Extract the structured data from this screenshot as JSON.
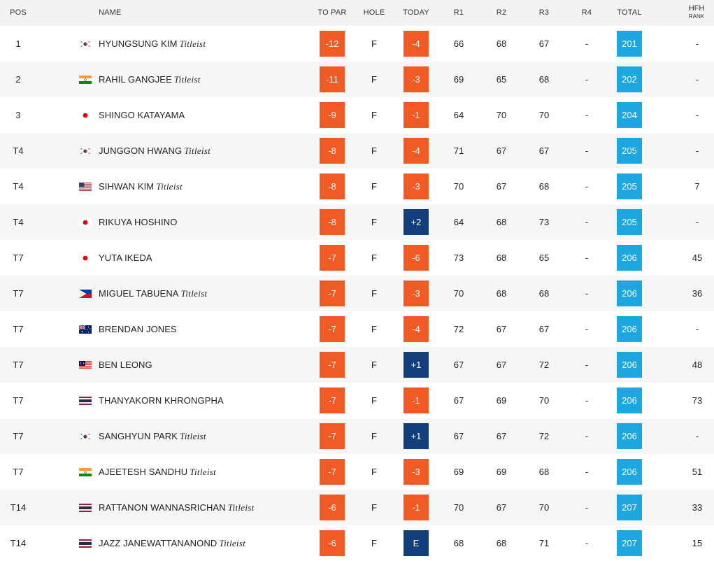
{
  "columns": {
    "pos": "POS",
    "name": "NAME",
    "to_par": "TO PAR",
    "hole": "HOLE",
    "today": "TODAY",
    "r1": "R1",
    "r2": "R2",
    "r3": "R3",
    "r4": "R4",
    "total": "TOTAL",
    "hfh": "HFH",
    "hfh_sub": "RANK"
  },
  "colors": {
    "to_par_box": "#f05a24",
    "today_over_box": "#123e7c",
    "total_box": "#1ca7e0"
  },
  "rows": [
    {
      "pos": "1",
      "flag": "korea-flag-icon",
      "name": "HYUNGSUNG KIM",
      "sponsor": "Titleist",
      "to_par": "-12",
      "hole": "F",
      "today": "-4",
      "r1": "66",
      "r2": "68",
      "r3": "67",
      "r4": "-",
      "total": "201",
      "hfh": "-"
    },
    {
      "pos": "2",
      "flag": "india-flag-icon",
      "name": "RAHIL GANGJEE",
      "sponsor": "Titleist",
      "to_par": "-11",
      "hole": "F",
      "today": "-3",
      "r1": "69",
      "r2": "65",
      "r3": "68",
      "r4": "-",
      "total": "202",
      "hfh": "-"
    },
    {
      "pos": "3",
      "flag": "japan-flag-icon",
      "name": "SHINGO KATAYAMA",
      "sponsor": "",
      "to_par": "-9",
      "hole": "F",
      "today": "-1",
      "r1": "64",
      "r2": "70",
      "r3": "70",
      "r4": "-",
      "total": "204",
      "hfh": "-"
    },
    {
      "pos": "T4",
      "flag": "korea-flag-icon",
      "name": "JUNGGON HWANG",
      "sponsor": "Titleist",
      "to_par": "-8",
      "hole": "F",
      "today": "-4",
      "r1": "71",
      "r2": "67",
      "r3": "67",
      "r4": "-",
      "total": "205",
      "hfh": "-"
    },
    {
      "pos": "T4",
      "flag": "usa-flag-icon",
      "name": "SIHWAN KIM",
      "sponsor": "Titleist",
      "to_par": "-8",
      "hole": "F",
      "today": "-3",
      "r1": "70",
      "r2": "67",
      "r3": "68",
      "r4": "-",
      "total": "205",
      "hfh": "7"
    },
    {
      "pos": "T4",
      "flag": "japan-flag-icon",
      "name": "RIKUYA HOSHINO",
      "sponsor": "",
      "to_par": "-8",
      "hole": "F",
      "today": "+2",
      "r1": "64",
      "r2": "68",
      "r3": "73",
      "r4": "-",
      "total": "205",
      "hfh": "-"
    },
    {
      "pos": "T7",
      "flag": "japan-flag-icon",
      "name": "YUTA IKEDA",
      "sponsor": "",
      "to_par": "-7",
      "hole": "F",
      "today": "-6",
      "r1": "73",
      "r2": "68",
      "r3": "65",
      "r4": "-",
      "total": "206",
      "hfh": "45"
    },
    {
      "pos": "T7",
      "flag": "philippines-flag-icon",
      "name": "MIGUEL TABUENA",
      "sponsor": "Titleist",
      "to_par": "-7",
      "hole": "F",
      "today": "-3",
      "r1": "70",
      "r2": "68",
      "r3": "68",
      "r4": "-",
      "total": "206",
      "hfh": "36"
    },
    {
      "pos": "T7",
      "flag": "australia-flag-icon",
      "name": "BRENDAN JONES",
      "sponsor": "",
      "to_par": "-7",
      "hole": "F",
      "today": "-4",
      "r1": "72",
      "r2": "67",
      "r3": "67",
      "r4": "-",
      "total": "206",
      "hfh": "-"
    },
    {
      "pos": "T7",
      "flag": "malaysia-flag-icon",
      "name": "BEN LEONG",
      "sponsor": "",
      "to_par": "-7",
      "hole": "F",
      "today": "+1",
      "r1": "67",
      "r2": "67",
      "r3": "72",
      "r4": "-",
      "total": "206",
      "hfh": "48"
    },
    {
      "pos": "T7",
      "flag": "thailand-flag-icon",
      "name": "THANYAKORN KHRONGPHA",
      "sponsor": "",
      "to_par": "-7",
      "hole": "F",
      "today": "-1",
      "r1": "67",
      "r2": "69",
      "r3": "70",
      "r4": "-",
      "total": "206",
      "hfh": "73"
    },
    {
      "pos": "T7",
      "flag": "korea-flag-icon",
      "name": "SANGHYUN PARK",
      "sponsor": "Titleist",
      "to_par": "-7",
      "hole": "F",
      "today": "+1",
      "r1": "67",
      "r2": "67",
      "r3": "72",
      "r4": "-",
      "total": "206",
      "hfh": "-"
    },
    {
      "pos": "T7",
      "flag": "india-flag-icon",
      "name": "AJEETESH SANDHU",
      "sponsor": "Titleist",
      "to_par": "-7",
      "hole": "F",
      "today": "-3",
      "r1": "69",
      "r2": "69",
      "r3": "68",
      "r4": "-",
      "total": "206",
      "hfh": "51"
    },
    {
      "pos": "T14",
      "flag": "thailand-flag-icon",
      "name": "RATTANON WANNASRICHAN",
      "sponsor": "Titleist",
      "to_par": "-6",
      "hole": "F",
      "today": "-1",
      "r1": "70",
      "r2": "67",
      "r3": "70",
      "r4": "-",
      "total": "207",
      "hfh": "33"
    },
    {
      "pos": "T14",
      "flag": "thailand-flag-icon",
      "name": "JAZZ JANEWATTANANOND",
      "sponsor": "Titleist",
      "to_par": "-6",
      "hole": "F",
      "today": "E",
      "r1": "68",
      "r2": "68",
      "r3": "71",
      "r4": "-",
      "total": "207",
      "hfh": "15"
    }
  ]
}
